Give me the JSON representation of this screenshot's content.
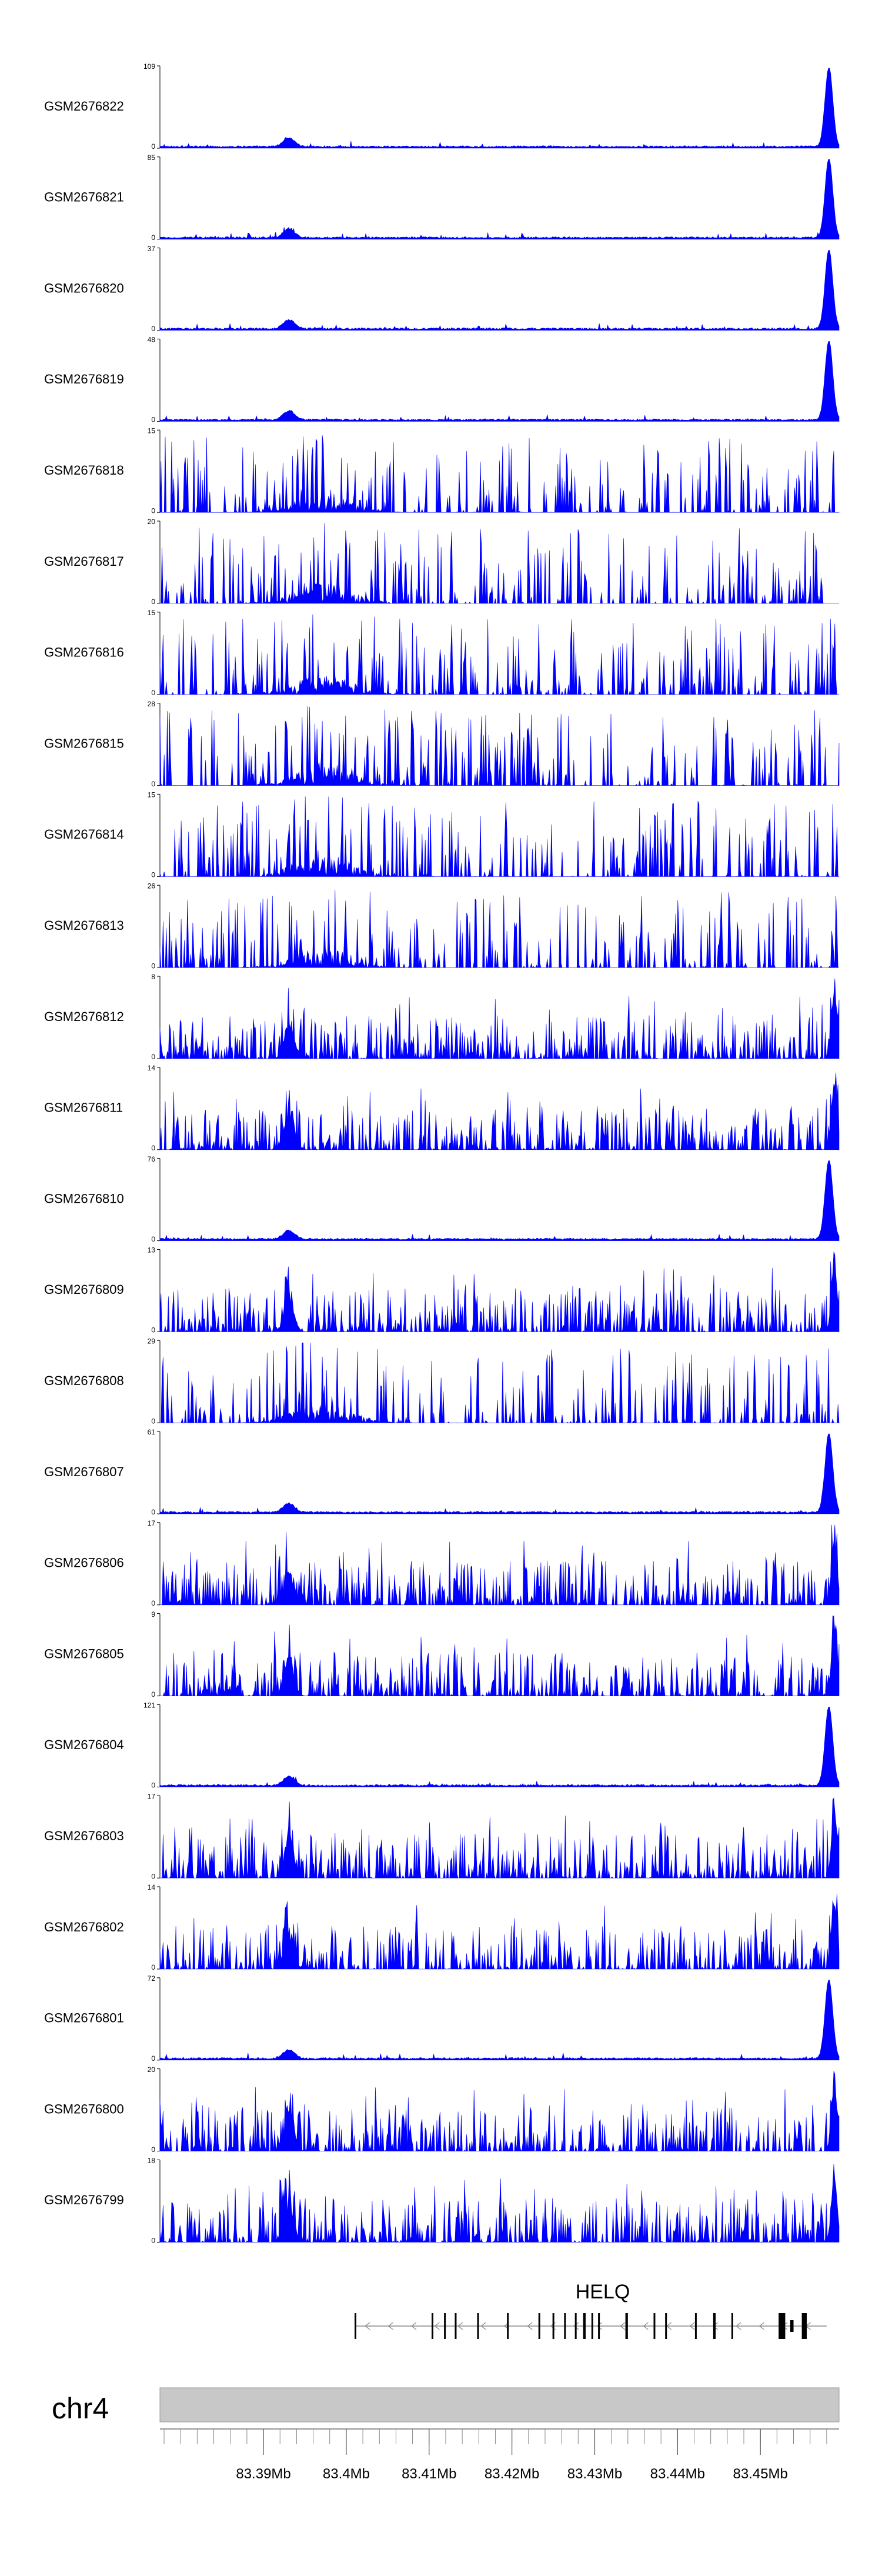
{
  "chart_data": {
    "type": "area",
    "style": {
      "fill_color": "#0000ff",
      "axis_color": "#000000",
      "ideogram_color": "#c8c8c8"
    },
    "x_range": [
      83.3775,
      83.4595
    ],
    "x_unit": "Mb",
    "tracks": [
      {
        "label": "GSM2676822",
        "ymax": "109",
        "ymin": "0",
        "ymax_value": 109,
        "profile": "peak"
      },
      {
        "label": "GSM2676821",
        "ymax": "85",
        "ymin": "0",
        "ymax_value": 85,
        "profile": "peak"
      },
      {
        "label": "GSM2676820",
        "ymax": "37",
        "ymin": "0",
        "ymax_value": 37,
        "profile": "peak"
      },
      {
        "label": "GSM2676819",
        "ymax": "48",
        "ymin": "0",
        "ymax_value": 48,
        "profile": "peak"
      },
      {
        "label": "GSM2676818",
        "ymax": "15",
        "ymin": "0",
        "ymax_value": 15,
        "profile": "sparse"
      },
      {
        "label": "GSM2676817",
        "ymax": "20",
        "ymin": "0",
        "ymax_value": 20,
        "profile": "sparse"
      },
      {
        "label": "GSM2676816",
        "ymax": "15",
        "ymin": "0",
        "ymax_value": 15,
        "profile": "sparse"
      },
      {
        "label": "GSM2676815",
        "ymax": "28",
        "ymin": "0",
        "ymax_value": 28,
        "profile": "sparse"
      },
      {
        "label": "GSM2676814",
        "ymax": "15",
        "ymin": "0",
        "ymax_value": 15,
        "profile": "sparse"
      },
      {
        "label": "GSM2676813",
        "ymax": "26",
        "ymin": "0",
        "ymax_value": 26,
        "profile": "sparse"
      },
      {
        "label": "GSM2676812",
        "ymax": "8",
        "ymin": "0",
        "ymax_value": 8,
        "profile": "dense"
      },
      {
        "label": "GSM2676811",
        "ymax": "14",
        "ymin": "0",
        "ymax_value": 14,
        "profile": "dense"
      },
      {
        "label": "GSM2676810",
        "ymax": "76",
        "ymin": "0",
        "ymax_value": 76,
        "profile": "peak"
      },
      {
        "label": "GSM2676809",
        "ymax": "13",
        "ymin": "0",
        "ymax_value": 13,
        "profile": "dense"
      },
      {
        "label": "GSM2676808",
        "ymax": "29",
        "ymin": "0",
        "ymax_value": 29,
        "profile": "sparse"
      },
      {
        "label": "GSM2676807",
        "ymax": "61",
        "ymin": "0",
        "ymax_value": 61,
        "profile": "peak"
      },
      {
        "label": "GSM2676806",
        "ymax": "17",
        "ymin": "0",
        "ymax_value": 17,
        "profile": "dense"
      },
      {
        "label": "GSM2676805",
        "ymax": "9",
        "ymin": "0",
        "ymax_value": 9,
        "profile": "dense"
      },
      {
        "label": "GSM2676804",
        "ymax": "121",
        "ymin": "0",
        "ymax_value": 121,
        "profile": "peak"
      },
      {
        "label": "GSM2676803",
        "ymax": "17",
        "ymin": "0",
        "ymax_value": 17,
        "profile": "dense"
      },
      {
        "label": "GSM2676802",
        "ymax": "14",
        "ymin": "0",
        "ymax_value": 14,
        "profile": "dense"
      },
      {
        "label": "GSM2676801",
        "ymax": "72",
        "ymin": "0",
        "ymax_value": 72,
        "profile": "peak"
      },
      {
        "label": "GSM2676800",
        "ymax": "20",
        "ymin": "0",
        "ymax_value": 20,
        "profile": "dense"
      },
      {
        "label": "GSM2676799",
        "ymax": "18",
        "ymin": "0",
        "ymax_value": 18,
        "profile": "dense"
      }
    ],
    "gene": {
      "name": "HELQ",
      "strand": "-",
      "start": 83.401,
      "end": 83.458,
      "exons": [
        {
          "s": 83.401,
          "e": 83.4012
        },
        {
          "s": 83.4103,
          "e": 83.4105
        },
        {
          "s": 83.4118,
          "e": 83.412
        },
        {
          "s": 83.4131,
          "e": 83.4133
        },
        {
          "s": 83.4158,
          "e": 83.416
        },
        {
          "s": 83.4194,
          "e": 83.4196
        },
        {
          "s": 83.4232,
          "e": 83.4234
        },
        {
          "s": 83.4249,
          "e": 83.4251
        },
        {
          "s": 83.4263,
          "e": 83.4265
        },
        {
          "s": 83.4276,
          "e": 83.4278
        },
        {
          "s": 83.4286,
          "e": 83.4289
        },
        {
          "s": 83.4296,
          "e": 83.4298
        },
        {
          "s": 83.4304,
          "e": 83.4306
        },
        {
          "s": 83.4337,
          "e": 83.434
        },
        {
          "s": 83.4371,
          "e": 83.4373
        },
        {
          "s": 83.4385,
          "e": 83.4387
        },
        {
          "s": 83.4421,
          "e": 83.4423
        },
        {
          "s": 83.4443,
          "e": 83.4446
        },
        {
          "s": 83.4465,
          "e": 83.4467
        },
        {
          "s": 83.4522,
          "e": 83.453
        },
        {
          "s": 83.455,
          "e": 83.4556
        }
      ],
      "utr": [
        {
          "s": 83.4536,
          "e": 83.454
        }
      ]
    },
    "chromosome": "chr4",
    "x_ticks": [
      {
        "value": 83.39,
        "label": "83.39Mb"
      },
      {
        "value": 83.4,
        "label": "83.4Mb"
      },
      {
        "value": 83.41,
        "label": "83.41Mb"
      },
      {
        "value": 83.42,
        "label": "83.42Mb"
      },
      {
        "value": 83.43,
        "label": "83.43Mb"
      },
      {
        "value": 83.44,
        "label": "83.44Mb"
      },
      {
        "value": 83.45,
        "label": "83.45Mb"
      }
    ],
    "minor_tick_step": 0.002
  }
}
